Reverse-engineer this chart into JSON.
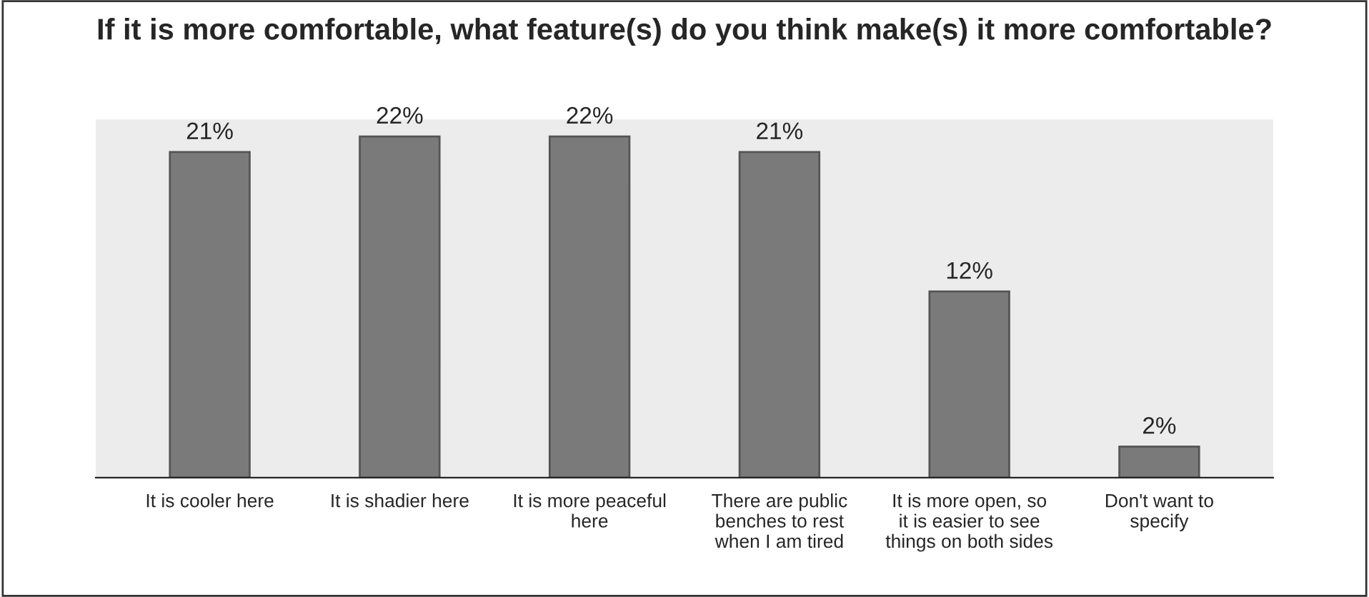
{
  "chart_data": {
    "type": "bar",
    "title": "If it is more comfortable, what feature(s) do you think make(s) it more comfortable?",
    "categories": [
      "It is cooler here",
      "It is shadier here",
      "It is more peaceful\nhere",
      "There are public\nbenches to rest\nwhen I am tired",
      "It is more open, so\nit is easier to see\nthings on both sides",
      "Don't want to\nspecify"
    ],
    "values": [
      21,
      22,
      22,
      21,
      12,
      2
    ],
    "value_labels": [
      "21%",
      "22%",
      "22%",
      "21%",
      "12%",
      "2%"
    ],
    "color": "#7a7a7a",
    "tick_labels": "x"
  }
}
